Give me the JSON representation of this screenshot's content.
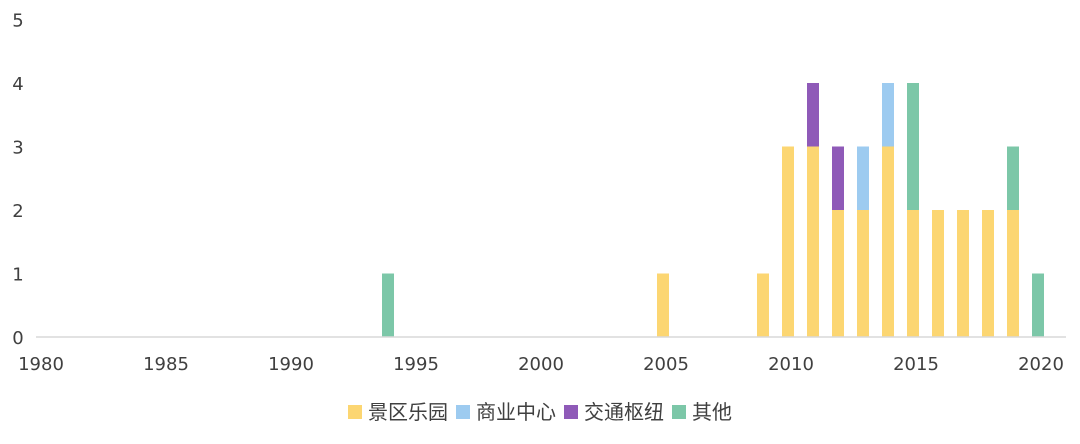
{
  "chart_data": {
    "type": "bar",
    "stacked": true,
    "x": [
      1994,
      2005,
      2009,
      2010,
      2011,
      2012,
      2013,
      2014,
      2015,
      2016,
      2017,
      2018,
      2019,
      2020
    ],
    "series": [
      {
        "name": "景区乐园",
        "color": "#FCD672",
        "values": [
          0,
          1,
          1,
          3,
          3,
          2,
          2,
          3,
          2,
          2,
          2,
          2,
          2,
          0
        ]
      },
      {
        "name": "商业中心",
        "color": "#9DCBF0",
        "values": [
          0,
          0,
          0,
          0,
          0,
          0,
          1,
          1,
          0,
          0,
          0,
          0,
          0,
          0
        ]
      },
      {
        "name": "交通枢纽",
        "color": "#8F5AB8",
        "values": [
          0,
          0,
          0,
          0,
          1,
          1,
          0,
          0,
          0,
          0,
          0,
          0,
          0,
          0
        ]
      },
      {
        "name": "其他",
        "color": "#7CC7A8",
        "values": [
          1,
          0,
          0,
          0,
          0,
          0,
          0,
          0,
          2,
          0,
          0,
          0,
          1,
          1
        ]
      }
    ],
    "xlim": [
      1980,
      2021
    ],
    "xticks": [
      1980,
      1985,
      1990,
      1995,
      2000,
      2005,
      2010,
      2015,
      2020
    ],
    "ylim": [
      0,
      5
    ],
    "yticks": [
      0,
      1,
      2,
      3,
      4,
      5
    ],
    "grid": false,
    "legend_position": "bottom",
    "title": "",
    "xlabel": "",
    "ylabel": ""
  }
}
